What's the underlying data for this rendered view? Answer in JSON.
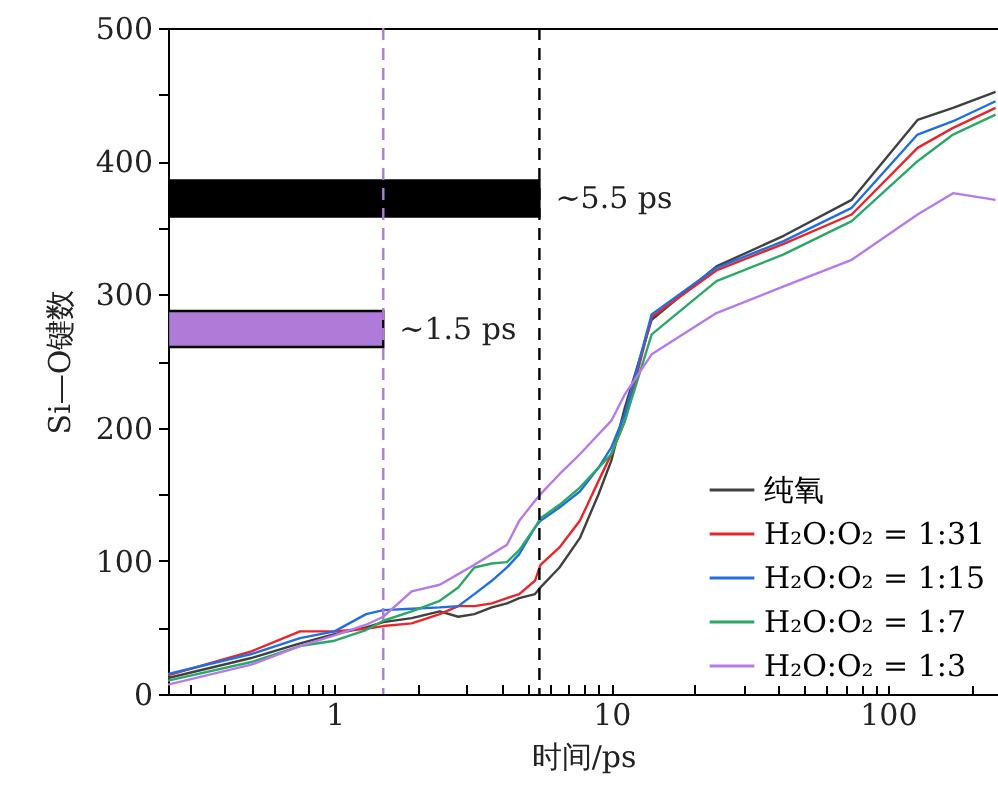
{
  "chart_data": {
    "type": "line",
    "xlabel": "时间/ps",
    "ylabel": "Si—O键数",
    "log": "x",
    "grid": false,
    "legend": "bottom right",
    "xlim": [
      0.25,
      250
    ],
    "ylim": [
      0,
      500
    ],
    "xticks": [
      {
        "value": 0.3,
        "label": null
      },
      {
        "value": 0.4,
        "label": null
      },
      {
        "value": 0.5,
        "label": null
      },
      {
        "value": 0.6,
        "label": null
      },
      {
        "value": 0.7,
        "label": null
      },
      {
        "value": 0.8,
        "label": null
      },
      {
        "value": 0.9,
        "label": null
      },
      1,
      {
        "value": 2,
        "label": null
      },
      {
        "value": 3,
        "label": null
      },
      {
        "value": 4,
        "label": null
      },
      {
        "value": 5,
        "label": null
      },
      {
        "value": 6,
        "label": null
      },
      {
        "value": 7,
        "label": null
      },
      {
        "value": 8,
        "label": null
      },
      {
        "value": 9,
        "label": null
      },
      10,
      {
        "value": 20,
        "label": null
      },
      {
        "value": 30,
        "label": null
      },
      {
        "value": 40,
        "label": null
      },
      {
        "value": 50,
        "label": null
      },
      {
        "value": 60,
        "label": null
      },
      {
        "value": 70,
        "label": null
      },
      {
        "value": 80,
        "label": null
      },
      {
        "value": 90,
        "label": null
      },
      100,
      {
        "value": 200,
        "label": null
      }
    ],
    "yticks": [
      0,
      {
        "value": 50,
        "label": null
      },
      100,
      {
        "value": 150,
        "label": null
      },
      200,
      {
        "value": 250,
        "label": null
      },
      300,
      {
        "value": 350,
        "label": null
      },
      400,
      {
        "value": 450,
        "label": null
      },
      500
    ],
    "x": [
      0.25,
      0.5,
      0.75,
      1,
      1.3,
      1.5,
      1.9,
      2.4,
      2.8,
      3.2,
      3.7,
      4.2,
      4.65,
      5.3,
      5.55,
      6.5,
      7.7,
      9,
      10,
      11.2,
      14,
      24,
      42,
      74,
      128,
      172,
      245
    ],
    "series": [
      {
        "name": "纯氧",
        "color": "#404040",
        "values": [
          12,
          27,
          38,
          45,
          50,
          54,
          57,
          62,
          58,
          60,
          65,
          68,
          72,
          75,
          80,
          95,
          117,
          150,
          175,
          215,
          281,
          321,
          344,
          371,
          431,
          440,
          452
        ]
      },
      {
        "name": "H₂O:O₂ = 1:31",
        "color": "#e8262a",
        "values": [
          14,
          32,
          47,
          47,
          49,
          51,
          53,
          60,
          66,
          66,
          68,
          72,
          75,
          85,
          97,
          110,
          130,
          160,
          180,
          205,
          283,
          318,
          338,
          360,
          410,
          425,
          440
        ]
      },
      {
        "name": "H₂O:O₂ = 1:15",
        "color": "#1f6fe0",
        "values": [
          15,
          30,
          42,
          47,
          60,
          63,
          64,
          65,
          66,
          75,
          85,
          95,
          105,
          125,
          130,
          140,
          152,
          170,
          185,
          210,
          285,
          320,
          340,
          365,
          420,
          430,
          445
        ]
      },
      {
        "name": "H₂O:O₂ = 1:7",
        "color": "#2aa866",
        "values": [
          10,
          24,
          36,
          40,
          48,
          55,
          62,
          70,
          80,
          95,
          98,
          99,
          108,
          125,
          132,
          142,
          155,
          170,
          180,
          205,
          270,
          310,
          330,
          355,
          400,
          420,
          435
        ]
      },
      {
        "name": "H₂O:O₂ = 1:3",
        "color": "#b77ae8",
        "values": [
          7,
          22,
          36,
          44,
          52,
          58,
          77,
          82,
          90,
          97,
          105,
          112,
          130,
          145,
          150,
          165,
          180,
          195,
          205,
          225,
          255,
          286,
          306,
          326,
          360,
          376,
          371
        ]
      }
    ],
    "ref_lines": [
      {
        "axis": "x",
        "value": 1.5,
        "color": "#b07ad9",
        "line_style": "dashed"
      },
      {
        "axis": "x",
        "value": 5.5,
        "color": "#000000",
        "line_style": "dashed"
      }
    ],
    "annotations": [
      {
        "text": "∼5.5 ps",
        "x": 5.5,
        "y": 372
      },
      {
        "text": "∼1.5 ps",
        "x": 1.5,
        "y": 274
      }
    ]
  }
}
